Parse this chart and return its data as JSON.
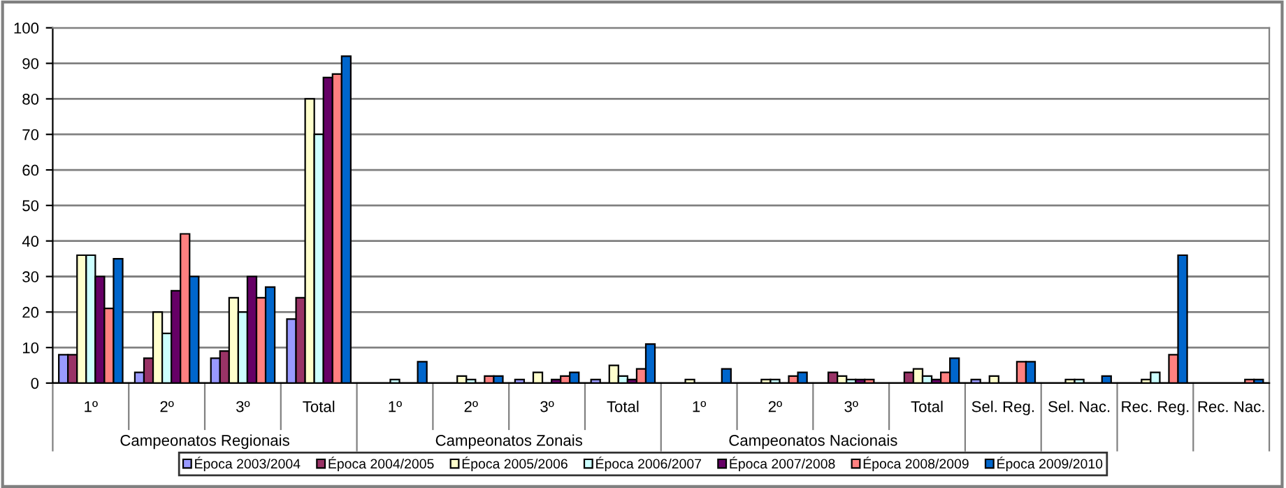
{
  "chart_data": {
    "type": "bar",
    "categories": [
      "1º",
      "2º",
      "3º",
      "Total",
      "1º",
      "2º",
      "3º",
      "Total",
      "1º",
      "2º",
      "3º",
      "Total",
      "Sel. Reg.",
      "Sel. Nac.",
      "Rec. Reg.",
      "Rec. Nac."
    ],
    "annotations": [
      "Campeonatos Regionais",
      "Campeonatos Zonais",
      "Campeonatos Nacionais"
    ],
    "series": [
      {
        "name": "Época 2003/2004",
        "color": "#9999ff",
        "values": [
          8,
          3,
          7,
          18,
          0,
          0,
          1,
          1,
          0,
          0,
          0,
          0,
          1,
          0,
          0,
          0
        ]
      },
      {
        "name": "Época 2004/2005",
        "color": "#993366",
        "values": [
          8,
          7,
          9,
          24,
          0,
          0,
          0,
          0,
          0,
          0,
          3,
          3,
          0,
          0,
          0,
          0
        ]
      },
      {
        "name": "Época 2005/2006",
        "color": "#ffffcc",
        "values": [
          36,
          20,
          24,
          80,
          0,
          2,
          3,
          5,
          1,
          1,
          2,
          4,
          2,
          1,
          1,
          0
        ]
      },
      {
        "name": "Época 2006/2007",
        "color": "#ccffff",
        "values": [
          36,
          14,
          20,
          70,
          1,
          1,
          0,
          2,
          0,
          1,
          1,
          2,
          0,
          1,
          3,
          0
        ]
      },
      {
        "name": "Época 2007/2008",
        "color": "#660066",
        "values": [
          30,
          26,
          30,
          86,
          0,
          0,
          1,
          1,
          0,
          0,
          1,
          1,
          0,
          0,
          0,
          0
        ]
      },
      {
        "name": "Época 2008/2009",
        "color": "#ff8080",
        "values": [
          21,
          42,
          24,
          87,
          0,
          2,
          2,
          4,
          0,
          2,
          1,
          3,
          6,
          0,
          8,
          1
        ]
      },
      {
        "name": "Época 2009/2010",
        "color": "#0066cc",
        "values": [
          35,
          30,
          27,
          92,
          6,
          2,
          3,
          11,
          4,
          3,
          0,
          7,
          6,
          2,
          36,
          1
        ]
      }
    ],
    "ylim": [
      0,
      100
    ],
    "yticks": [
      0,
      10,
      20,
      30,
      40,
      50,
      60,
      70,
      80,
      90,
      100
    ],
    "grid": "y",
    "legend": "bottom"
  }
}
